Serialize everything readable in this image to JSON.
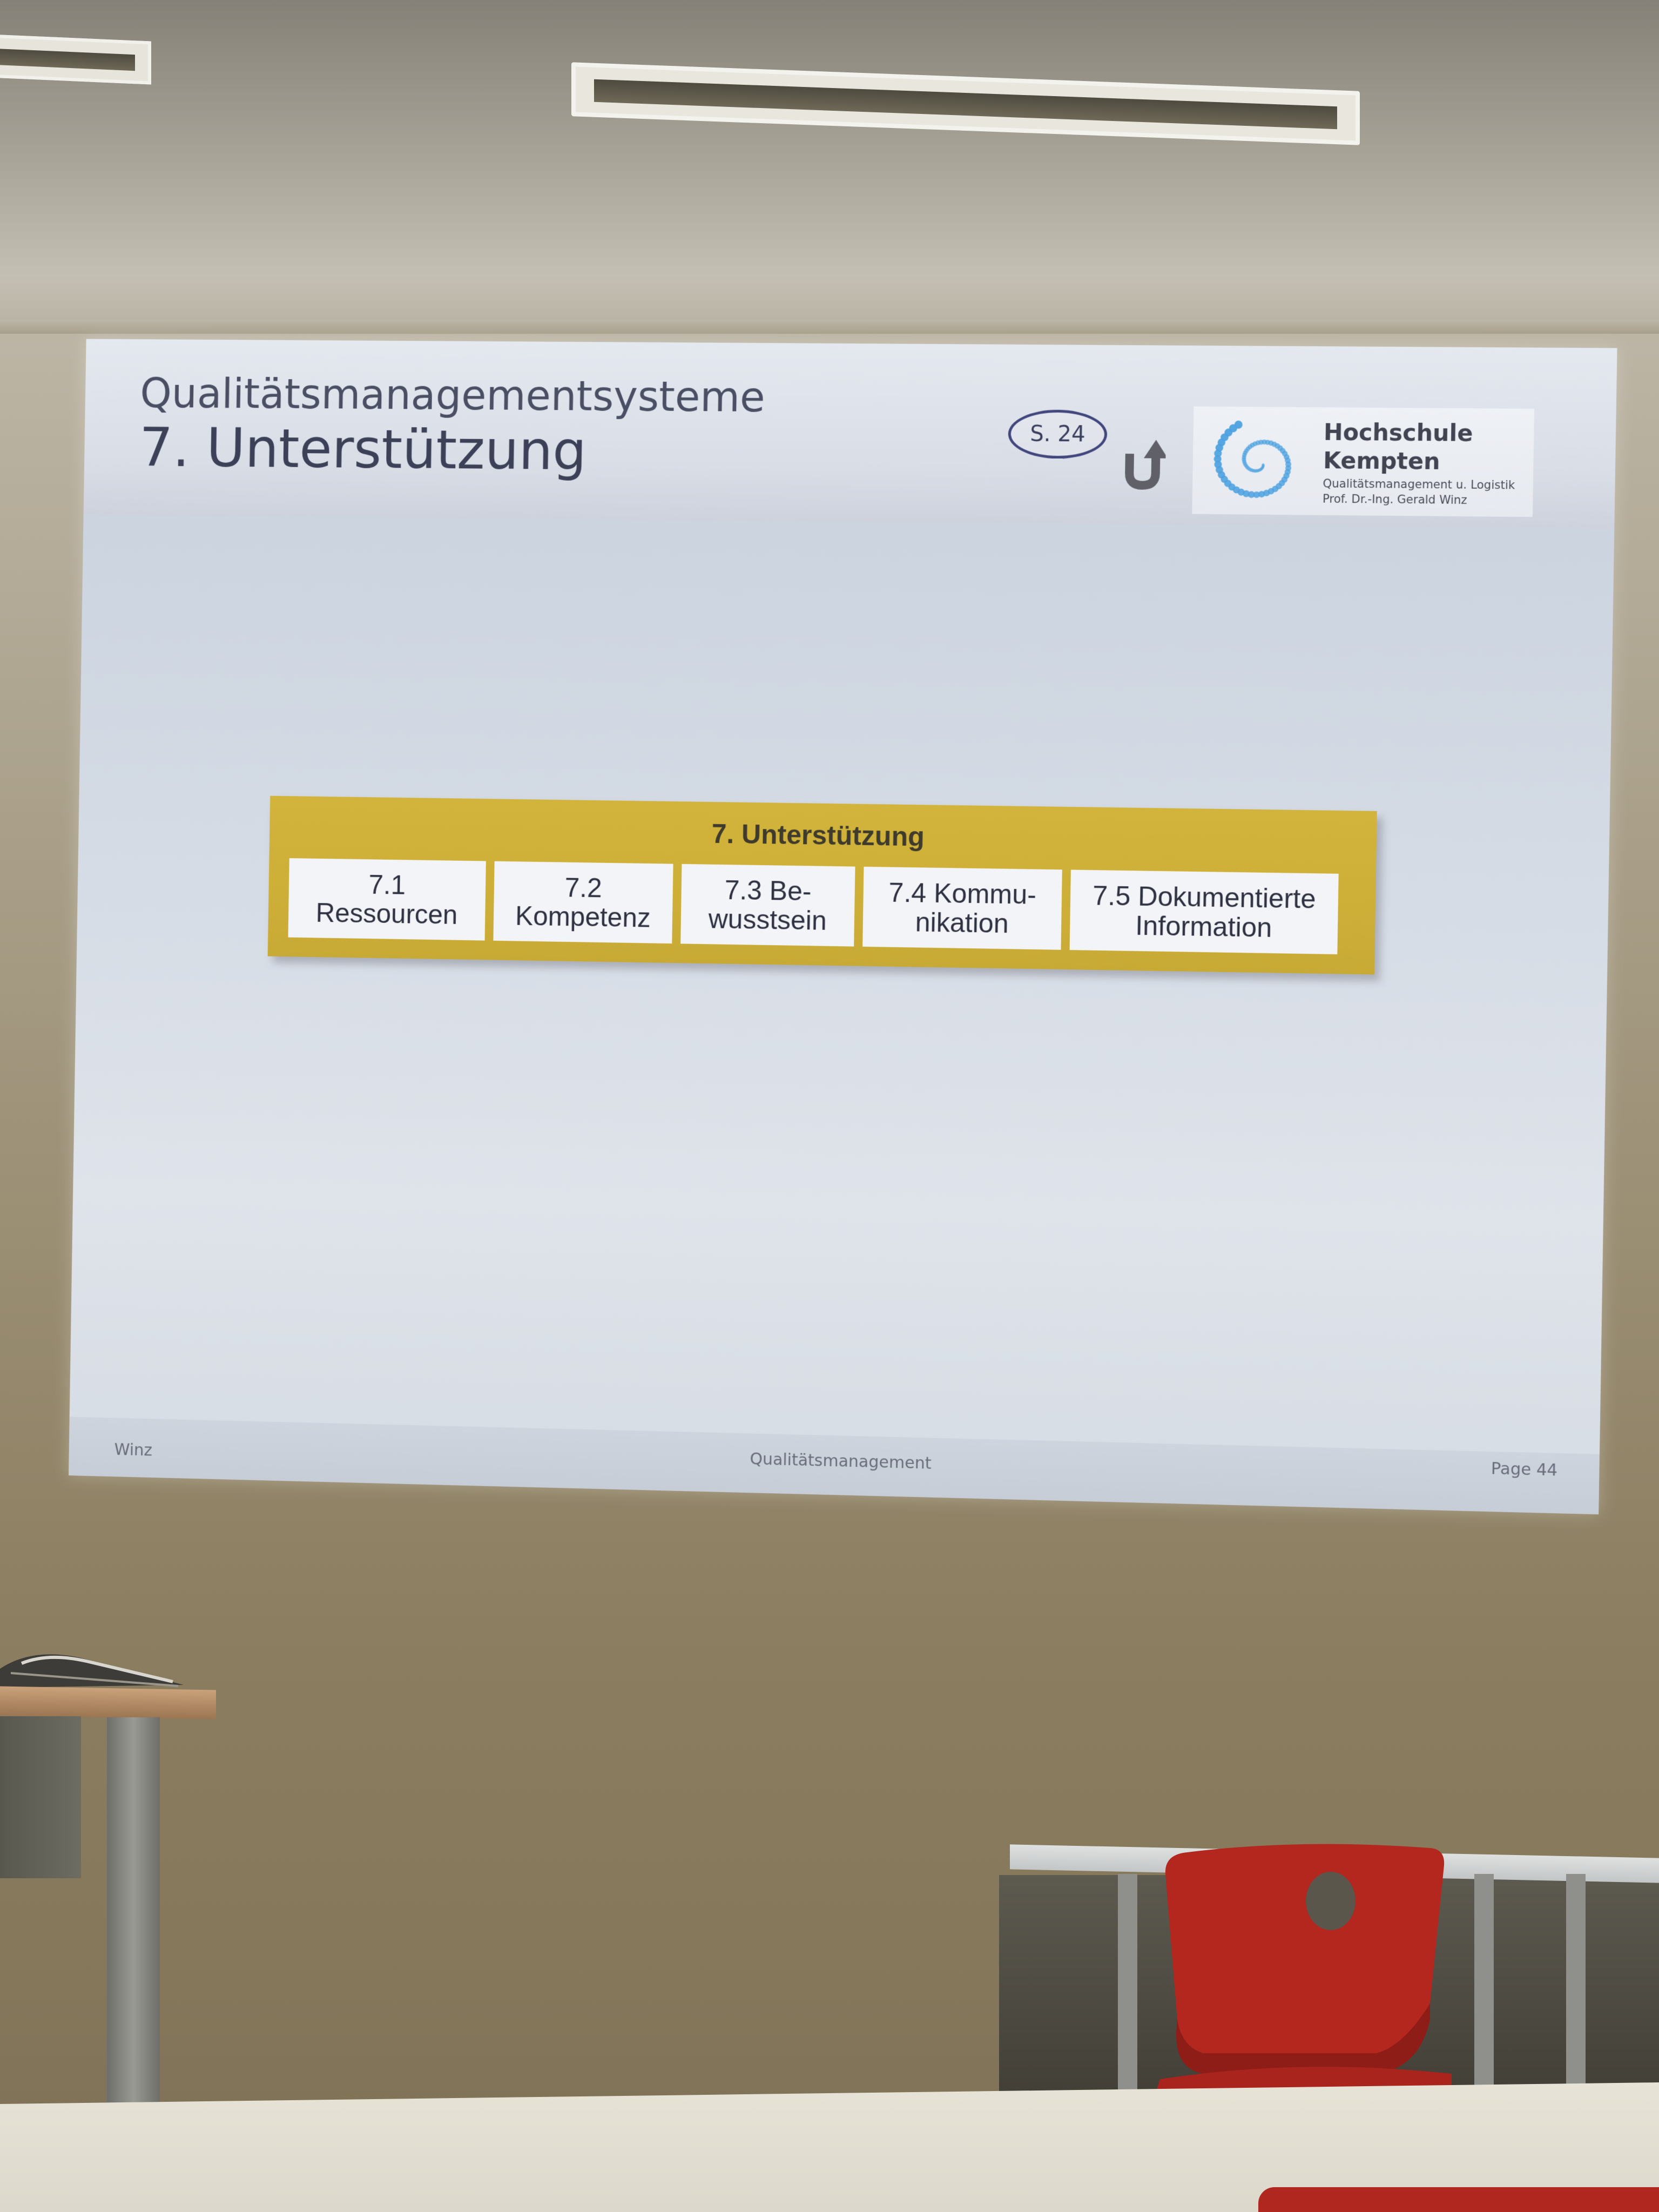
{
  "slide": {
    "subtitle": "Qualitätsmanagementsysteme",
    "title": "7. Unterstützung",
    "page_reference": "S. 24",
    "back_icon": "u-turn-arrow-icon",
    "logo": {
      "name": "Hochschule\nKempten",
      "department_line1": "Qualitätsmanagement u. Logistik",
      "department_line2": "Prof. Dr.-Ing. Gerald Winz",
      "spiral_color": "#4aa0e0"
    },
    "diagram": {
      "heading": "7. Unterstützung",
      "accent_color": "#cfb03a",
      "items": [
        {
          "label": "7.1\nRessourcen"
        },
        {
          "label": "7.2\nKompetenz"
        },
        {
          "label": "7.3 Be-\nwusstsein"
        },
        {
          "label": "7.4 Kommu-\nnikation"
        },
        {
          "label": "7.5 Dokumentierte\nInformation"
        }
      ]
    },
    "footer": {
      "author": "Winz",
      "course": "Qualitätsmanagement",
      "page": "Page 44"
    }
  }
}
